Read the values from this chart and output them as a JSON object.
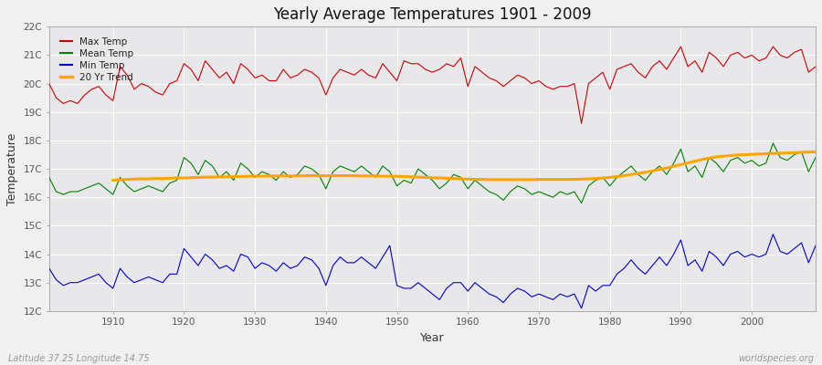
{
  "title": "Yearly Average Temperatures 1901 - 2009",
  "xlabel": "Year",
  "ylabel": "Temperature",
  "footnote_left": "Latitude 37.25 Longitude 14.75",
  "footnote_right": "worldspecies.org",
  "years": [
    1901,
    1902,
    1903,
    1904,
    1905,
    1906,
    1907,
    1908,
    1909,
    1910,
    1911,
    1912,
    1913,
    1914,
    1915,
    1916,
    1917,
    1918,
    1919,
    1920,
    1921,
    1922,
    1923,
    1924,
    1925,
    1926,
    1927,
    1928,
    1929,
    1930,
    1931,
    1932,
    1933,
    1934,
    1935,
    1936,
    1937,
    1938,
    1939,
    1940,
    1941,
    1942,
    1943,
    1944,
    1945,
    1946,
    1947,
    1948,
    1949,
    1950,
    1951,
    1952,
    1953,
    1954,
    1955,
    1956,
    1957,
    1958,
    1959,
    1960,
    1961,
    1962,
    1963,
    1964,
    1965,
    1966,
    1967,
    1968,
    1969,
    1970,
    1971,
    1972,
    1973,
    1974,
    1975,
    1976,
    1977,
    1978,
    1979,
    1980,
    1981,
    1982,
    1983,
    1984,
    1985,
    1986,
    1987,
    1988,
    1989,
    1990,
    1991,
    1992,
    1993,
    1994,
    1995,
    1996,
    1997,
    1998,
    1999,
    2000,
    2001,
    2002,
    2003,
    2004,
    2005,
    2006,
    2007,
    2008,
    2009
  ],
  "max_temp": [
    20.0,
    19.5,
    19.3,
    19.4,
    19.3,
    19.6,
    19.8,
    19.9,
    19.6,
    19.4,
    20.6,
    20.3,
    19.8,
    20.0,
    19.9,
    19.7,
    19.6,
    20.0,
    20.1,
    20.7,
    20.5,
    20.1,
    20.8,
    20.5,
    20.2,
    20.4,
    20.0,
    20.7,
    20.5,
    20.2,
    20.3,
    20.1,
    20.1,
    20.5,
    20.2,
    20.3,
    20.5,
    20.4,
    20.2,
    19.6,
    20.2,
    20.5,
    20.4,
    20.3,
    20.5,
    20.3,
    20.2,
    20.7,
    20.4,
    20.1,
    20.8,
    20.7,
    20.7,
    20.5,
    20.4,
    20.5,
    20.7,
    20.6,
    20.9,
    19.9,
    20.6,
    20.4,
    20.2,
    20.1,
    19.9,
    20.1,
    20.3,
    20.2,
    20.0,
    20.1,
    19.9,
    19.8,
    19.9,
    19.9,
    20.0,
    18.6,
    20.0,
    20.2,
    20.4,
    19.8,
    20.5,
    20.6,
    20.7,
    20.4,
    20.2,
    20.6,
    20.8,
    20.5,
    20.9,
    21.3,
    20.6,
    20.8,
    20.4,
    21.1,
    20.9,
    20.6,
    21.0,
    21.1,
    20.9,
    21.0,
    20.8,
    20.9,
    21.3,
    21.0,
    20.9,
    21.1,
    21.2,
    20.4,
    20.6
  ],
  "mean_temp": [
    16.7,
    16.2,
    16.1,
    16.2,
    16.2,
    16.3,
    16.4,
    16.5,
    16.3,
    16.1,
    16.7,
    16.4,
    16.2,
    16.3,
    16.4,
    16.3,
    16.2,
    16.5,
    16.6,
    17.4,
    17.2,
    16.8,
    17.3,
    17.1,
    16.7,
    16.9,
    16.6,
    17.2,
    17.0,
    16.7,
    16.9,
    16.8,
    16.6,
    16.9,
    16.7,
    16.8,
    17.1,
    17.0,
    16.8,
    16.3,
    16.9,
    17.1,
    17.0,
    16.9,
    17.1,
    16.9,
    16.7,
    17.1,
    16.9,
    16.4,
    16.6,
    16.5,
    17.0,
    16.8,
    16.6,
    16.3,
    16.5,
    16.8,
    16.7,
    16.3,
    16.6,
    16.4,
    16.2,
    16.1,
    15.9,
    16.2,
    16.4,
    16.3,
    16.1,
    16.2,
    16.1,
    16.0,
    16.2,
    16.1,
    16.2,
    15.8,
    16.4,
    16.6,
    16.7,
    16.4,
    16.7,
    16.9,
    17.1,
    16.8,
    16.6,
    16.9,
    17.1,
    16.8,
    17.2,
    17.7,
    16.9,
    17.1,
    16.7,
    17.4,
    17.2,
    16.9,
    17.3,
    17.4,
    17.2,
    17.3,
    17.1,
    17.2,
    17.9,
    17.4,
    17.3,
    17.5,
    17.6,
    16.9,
    17.4
  ],
  "min_temp": [
    13.5,
    13.1,
    12.9,
    13.0,
    13.0,
    13.1,
    13.2,
    13.3,
    13.0,
    12.8,
    13.5,
    13.2,
    13.0,
    13.1,
    13.2,
    13.1,
    13.0,
    13.3,
    13.3,
    14.2,
    13.9,
    13.6,
    14.0,
    13.8,
    13.5,
    13.6,
    13.4,
    14.0,
    13.9,
    13.5,
    13.7,
    13.6,
    13.4,
    13.7,
    13.5,
    13.6,
    13.9,
    13.8,
    13.5,
    12.9,
    13.6,
    13.9,
    13.7,
    13.7,
    13.9,
    13.7,
    13.5,
    13.9,
    14.3,
    12.9,
    12.8,
    12.8,
    13.0,
    12.8,
    12.6,
    12.4,
    12.8,
    13.0,
    13.0,
    12.7,
    13.0,
    12.8,
    12.6,
    12.5,
    12.3,
    12.6,
    12.8,
    12.7,
    12.5,
    12.6,
    12.5,
    12.4,
    12.6,
    12.5,
    12.6,
    12.1,
    12.9,
    12.7,
    12.9,
    12.9,
    13.3,
    13.5,
    13.8,
    13.5,
    13.3,
    13.6,
    13.9,
    13.6,
    14.0,
    14.5,
    13.6,
    13.8,
    13.4,
    14.1,
    13.9,
    13.6,
    14.0,
    14.1,
    13.9,
    14.0,
    13.9,
    14.0,
    14.7,
    14.1,
    14.0,
    14.2,
    14.4,
    13.7,
    14.3
  ],
  "trend_years": [
    1910,
    1911,
    1912,
    1913,
    1914,
    1915,
    1916,
    1917,
    1918,
    1919,
    1920,
    1921,
    1922,
    1923,
    1924,
    1925,
    1926,
    1927,
    1928,
    1929,
    1930,
    1931,
    1932,
    1933,
    1934,
    1935,
    1936,
    1937,
    1938,
    1939,
    1940,
    1941,
    1942,
    1943,
    1944,
    1945,
    1946,
    1947,
    1948,
    1949,
    1950,
    1951,
    1952,
    1953,
    1954,
    1955,
    1956,
    1957,
    1958,
    1959,
    1960,
    1961,
    1962,
    1963,
    1964,
    1965,
    1966,
    1967,
    1968,
    1969,
    1970,
    1971,
    1972,
    1973,
    1974,
    1975,
    1976,
    1977,
    1978,
    1979,
    1980,
    1981,
    1982,
    1983,
    1984,
    1985,
    1986,
    1987,
    1988,
    1989,
    1990,
    1991,
    1992,
    1993,
    1994,
    1995,
    1996,
    1997,
    1998,
    1999,
    2000,
    2001,
    2002,
    2003,
    2004,
    2005,
    2006,
    2007,
    2008,
    2009
  ],
  "trend_values": [
    16.6,
    16.62,
    16.63,
    16.64,
    16.65,
    16.65,
    16.66,
    16.66,
    16.67,
    16.68,
    16.68,
    16.69,
    16.7,
    16.71,
    16.71,
    16.72,
    16.72,
    16.73,
    16.73,
    16.74,
    16.74,
    16.74,
    16.75,
    16.75,
    16.75,
    16.75,
    16.75,
    16.76,
    16.76,
    16.76,
    16.76,
    16.76,
    16.76,
    16.76,
    16.76,
    16.75,
    16.75,
    16.75,
    16.74,
    16.74,
    16.74,
    16.73,
    16.72,
    16.71,
    16.7,
    16.69,
    16.68,
    16.67,
    16.66,
    16.65,
    16.64,
    16.63,
    16.63,
    16.62,
    16.62,
    16.62,
    16.62,
    16.62,
    16.62,
    16.62,
    16.63,
    16.63,
    16.63,
    16.63,
    16.63,
    16.63,
    16.64,
    16.65,
    16.66,
    16.68,
    16.7,
    16.73,
    16.76,
    16.8,
    16.84,
    16.88,
    16.93,
    16.98,
    17.03,
    17.09,
    17.15,
    17.21,
    17.27,
    17.33,
    17.38,
    17.42,
    17.45,
    17.47,
    17.49,
    17.5,
    17.51,
    17.52,
    17.53,
    17.54,
    17.55,
    17.56,
    17.57,
    17.58,
    17.59,
    17.6
  ],
  "ylim": [
    12,
    22
  ],
  "yticks": [
    12,
    13,
    14,
    15,
    16,
    17,
    18,
    19,
    20,
    21,
    22
  ],
  "ytick_labels": [
    "12C",
    "13C",
    "14C",
    "15C",
    "16C",
    "17C",
    "18C",
    "19C",
    "20C",
    "21C",
    "22C"
  ],
  "xticks": [
    1910,
    1920,
    1930,
    1940,
    1950,
    1960,
    1970,
    1980,
    1990,
    2000
  ],
  "fig_bg_color": "#f0f0f0",
  "plot_bg_color": "#e8e8eb",
  "grid_color": "#ffffff",
  "max_color": "#cc0000",
  "mean_color": "#008000",
  "min_color": "#0000cc",
  "trend_color": "#ffa500",
  "legend_labels": [
    "Max Temp",
    "Mean Temp",
    "Min Temp",
    "20 Yr Trend"
  ],
  "legend_colors": [
    "#cc0000",
    "#008000",
    "#0000cc",
    "#ffa500"
  ]
}
